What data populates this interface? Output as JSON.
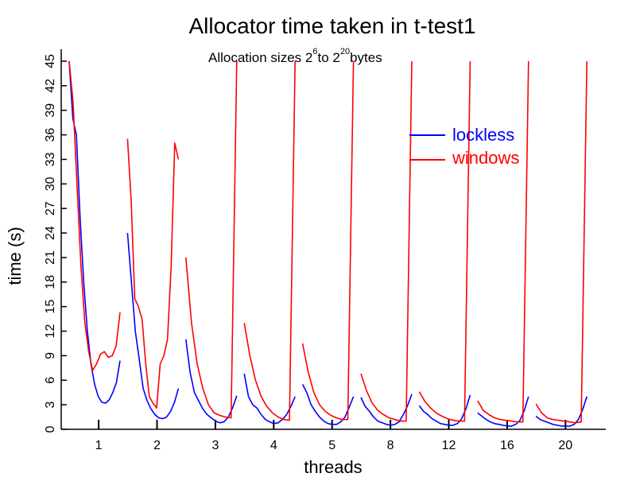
{
  "chart_data": {
    "type": "line",
    "title": "Allocator time taken in t-test1",
    "subtitle": {
      "prefix": "Allocation sizes 2",
      "exp1": "6",
      "middle": "to 2",
      "exp2": "20",
      "suffix": "bytes"
    },
    "xlabel": "threads",
    "ylabel": "time (s)",
    "ylim": [
      0,
      45
    ],
    "yticks": [
      0,
      3,
      6,
      9,
      12,
      15,
      18,
      21,
      24,
      27,
      30,
      33,
      36,
      39,
      42,
      45
    ],
    "categories": [
      "1",
      "2",
      "3",
      "4",
      "5",
      "8",
      "12",
      "16",
      "20"
    ],
    "legend_position": "top-right",
    "grid": false,
    "series": [
      {
        "name": "lockless",
        "color": "#0000ff",
        "segments": [
          [
            45.0,
            38.0,
            36.0,
            26.0,
            18.0,
            12.0,
            8.0,
            5.5,
            4.0,
            3.3,
            3.2,
            3.6,
            4.5,
            5.7,
            8.4
          ],
          [
            24.0,
            18.0,
            12.0,
            8.5,
            5.0,
            3.5,
            2.5,
            1.8,
            1.4,
            1.3,
            1.5,
            2.2,
            3.3,
            5.0
          ],
          [
            11.0,
            7.0,
            4.5,
            3.5,
            2.5,
            1.8,
            1.4,
            1.0,
            0.8,
            0.9,
            1.5,
            2.6,
            4.1
          ],
          [
            6.8,
            4.0,
            3.0,
            2.6,
            1.8,
            1.2,
            0.9,
            0.7,
            0.8,
            1.2,
            1.8,
            2.8,
            4.0
          ],
          [
            5.5,
            4.5,
            3.0,
            2.2,
            1.5,
            1.0,
            0.7,
            0.6,
            0.6,
            0.9,
            1.5,
            2.7,
            4.0
          ],
          [
            3.9,
            2.8,
            2.2,
            1.5,
            1.0,
            0.8,
            0.6,
            0.5,
            0.6,
            0.9,
            1.8,
            2.9,
            4.3
          ],
          [
            2.9,
            2.2,
            1.8,
            1.3,
            1.0,
            0.7,
            0.6,
            0.5,
            0.5,
            0.7,
            1.3,
            2.5,
            4.2
          ],
          [
            2.0,
            1.6,
            1.2,
            0.9,
            0.7,
            0.6,
            0.5,
            0.4,
            0.4,
            0.6,
            1.1,
            2.3,
            4.0
          ],
          [
            1.6,
            1.2,
            1.0,
            0.8,
            0.6,
            0.5,
            0.4,
            0.4,
            0.4,
            0.6,
            1.2,
            2.4,
            4.0
          ]
        ]
      },
      {
        "name": "windows",
        "color": "#ff0000",
        "segments": [
          [
            45.0,
            40.0,
            30.0,
            20.0,
            13.0,
            9.5,
            7.2,
            8.0,
            9.2,
            9.5,
            8.8,
            9.0,
            10.2,
            14.3
          ],
          [
            35.5,
            28.0,
            16.0,
            15.0,
            13.5,
            8.0,
            4.0,
            3.2,
            2.6,
            8.0,
            9.0,
            11.0,
            20.0,
            35.0,
            33.0
          ],
          [
            21.0,
            13.0,
            8.0,
            5.0,
            3.0,
            2.0,
            1.7,
            1.5,
            1.4,
            45.0
          ],
          [
            13.0,
            9.0,
            6.0,
            4.0,
            2.8,
            2.0,
            1.5,
            1.2,
            1.1,
            45.0
          ],
          [
            10.5,
            7.0,
            4.5,
            3.0,
            2.2,
            1.7,
            1.4,
            1.2,
            1.2,
            45.0
          ],
          [
            6.8,
            4.7,
            3.2,
            2.3,
            1.8,
            1.4,
            1.2,
            1.0,
            1.0,
            45.0
          ],
          [
            4.6,
            3.4,
            2.6,
            2.0,
            1.6,
            1.3,
            1.1,
            1.0,
            1.0,
            45.0
          ],
          [
            3.5,
            2.3,
            1.8,
            1.4,
            1.2,
            1.1,
            1.0,
            0.9,
            0.9,
            45.0
          ],
          [
            3.1,
            2.0,
            1.4,
            1.2,
            1.1,
            1.0,
            0.9,
            0.8,
            0.9,
            45.0
          ]
        ]
      }
    ]
  }
}
